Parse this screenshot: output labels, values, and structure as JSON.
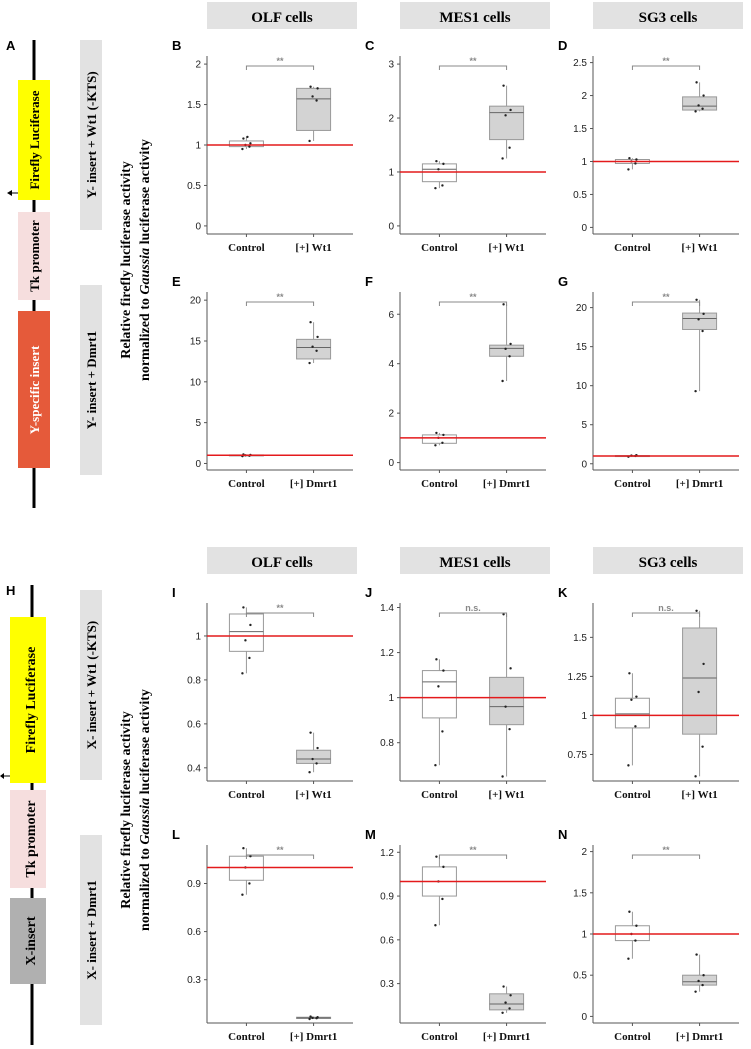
{
  "colors": {
    "yellow": "#ffff00",
    "pink": "#f6dede",
    "orange": "#e55a3a",
    "gray": "#b0b0b0",
    "header": "#e2e2e2",
    "redline": "#e41a1c",
    "box_control": "#ffffff",
    "box_treated": "#d3d3d3"
  },
  "headers": [
    "OLF cells",
    "MES1 cells",
    "SG3 cells"
  ],
  "top": {
    "panel_label": "A",
    "construct": [
      "Firefly Luciferase",
      "Tk promoter",
      "Y-specific insert"
    ],
    "row_labels": [
      "Y- insert + Wt1 (-KTS)",
      "Y- insert + Dmrt1"
    ]
  },
  "bottom": {
    "panel_label": "H",
    "construct": [
      "Firefly Luciferase",
      "Tk promoter",
      "X-insert"
    ],
    "row_labels": [
      "X- insert + Wt1 (-KTS)",
      "X- insert + Dmrt1"
    ]
  },
  "ylabel": {
    "line1": "Relative firefly luciferase activity",
    "line2_pre": "normalized to ",
    "line2_italic": "Gaussia",
    "line2_post": " luciferase activity"
  },
  "chart_data": [
    {
      "type": "box",
      "panel": "B",
      "xlabels": [
        "Control",
        "[+] Wt1"
      ],
      "ylim": [
        -0.1,
        2.1
      ],
      "yticks": [
        "0",
        "0.5",
        "1",
        "1.5",
        "2"
      ],
      "sig": "**",
      "boxes": [
        {
          "q1": 0.98,
          "median": 1.0,
          "q3": 1.05,
          "lo": 0.95,
          "hi": 1.1,
          "points": [
            0.95,
            0.98,
            1.0,
            1.02,
            1.08,
            1.1
          ]
        },
        {
          "q1": 1.18,
          "median": 1.57,
          "q3": 1.7,
          "lo": 1.05,
          "hi": 1.72,
          "points": [
            1.05,
            1.55,
            1.6,
            1.7,
            1.72
          ]
        }
      ]
    },
    {
      "type": "box",
      "panel": "C",
      "xlabels": [
        "Control",
        "[+] Wt1"
      ],
      "ylim": [
        -0.15,
        3.15
      ],
      "yticks": [
        "0",
        "1",
        "2",
        "3"
      ],
      "sig": "**",
      "boxes": [
        {
          "q1": 0.82,
          "median": 1.05,
          "q3": 1.15,
          "lo": 0.7,
          "hi": 1.2,
          "points": [
            0.7,
            0.75,
            1.05,
            1.15,
            1.2
          ]
        },
        {
          "q1": 1.6,
          "median": 2.1,
          "q3": 2.22,
          "lo": 1.25,
          "hi": 2.6,
          "points": [
            1.25,
            1.45,
            2.05,
            2.15,
            2.6
          ]
        }
      ]
    },
    {
      "type": "box",
      "panel": "D",
      "xlabels": [
        "Control",
        "[+] Wt1"
      ],
      "ylim": [
        -0.1,
        2.6
      ],
      "yticks": [
        "0",
        "0.5",
        "1",
        "1.5",
        "2",
        "2.5"
      ],
      "sig": "**",
      "boxes": [
        {
          "q1": 0.97,
          "median": 1.0,
          "q3": 1.03,
          "lo": 0.88,
          "hi": 1.05,
          "points": [
            0.88,
            0.97,
            1.0,
            1.03,
            1.05
          ]
        },
        {
          "q1": 1.78,
          "median": 1.84,
          "q3": 1.98,
          "lo": 1.76,
          "hi": 2.2,
          "points": [
            1.76,
            1.8,
            1.85,
            2.0,
            2.2
          ]
        }
      ]
    },
    {
      "type": "box",
      "panel": "E",
      "xlabels": [
        "Control",
        "[+] Dmrt1"
      ],
      "ylim": [
        -0.8,
        21
      ],
      "yticks": [
        "0",
        "5",
        "10",
        "15",
        "20"
      ],
      "sig": "**",
      "boxes": [
        {
          "q1": 0.95,
          "median": 1.0,
          "q3": 1.05,
          "lo": 0.9,
          "hi": 1.1,
          "points": [
            0.9,
            0.95,
            1.0,
            1.05,
            1.1
          ]
        },
        {
          "q1": 12.8,
          "median": 14.2,
          "q3": 15.2,
          "lo": 12.3,
          "hi": 17.3,
          "points": [
            12.3,
            13.8,
            14.3,
            15.5,
            17.3
          ]
        }
      ]
    },
    {
      "type": "box",
      "panel": "F",
      "xlabels": [
        "Control",
        "[+] Dmrt1"
      ],
      "ylim": [
        -0.3,
        6.9
      ],
      "yticks": [
        "0",
        "2",
        "4",
        "6"
      ],
      "sig": "**",
      "boxes": [
        {
          "q1": 0.78,
          "median": 1.0,
          "q3": 1.12,
          "lo": 0.7,
          "hi": 1.2,
          "points": [
            0.7,
            0.8,
            1.0,
            1.12,
            1.2
          ]
        },
        {
          "q1": 4.3,
          "median": 4.62,
          "q3": 4.75,
          "lo": 3.3,
          "hi": 6.4,
          "points": [
            3.3,
            4.3,
            4.6,
            4.8,
            6.4
          ]
        }
      ]
    },
    {
      "type": "box",
      "panel": "G",
      "xlabels": [
        "Control",
        "[+] Dmrt1"
      ],
      "ylim": [
        -0.8,
        22
      ],
      "yticks": [
        "0",
        "5",
        "10",
        "15",
        "20"
      ],
      "sig": "**",
      "boxes": [
        {
          "q1": 0.95,
          "median": 1.0,
          "q3": 1.05,
          "lo": 0.9,
          "hi": 1.1,
          "points": [
            0.9,
            1.0,
            1.05,
            1.1
          ]
        },
        {
          "q1": 17.2,
          "median": 18.6,
          "q3": 19.3,
          "lo": 9.3,
          "hi": 21.0,
          "points": [
            9.3,
            17.0,
            18.5,
            19.2,
            21.0
          ]
        }
      ]
    },
    {
      "type": "box",
      "panel": "I",
      "xlabels": [
        "Control",
        "[+] Wt1"
      ],
      "ylim": [
        0.34,
        1.15
      ],
      "yticks": [
        "0.4",
        "0.6",
        "0.8",
        "1"
      ],
      "sig": "**",
      "boxes": [
        {
          "q1": 0.93,
          "median": 1.02,
          "q3": 1.1,
          "lo": 0.83,
          "hi": 1.13,
          "points": [
            0.83,
            0.9,
            0.98,
            1.05,
            1.13
          ]
        },
        {
          "q1": 0.42,
          "median": 0.44,
          "q3": 0.48,
          "lo": 0.38,
          "hi": 0.56,
          "points": [
            0.38,
            0.42,
            0.44,
            0.49,
            0.56
          ]
        }
      ]
    },
    {
      "type": "box",
      "panel": "J",
      "xlabels": [
        "Control",
        "[+] Wt1"
      ],
      "ylim": [
        0.63,
        1.42
      ],
      "yticks": [
        "0.8",
        "1",
        "1.2",
        "1.4"
      ],
      "sig": "n.s.",
      "boxes": [
        {
          "q1": 0.91,
          "median": 1.07,
          "q3": 1.12,
          "lo": 0.7,
          "hi": 1.17,
          "points": [
            0.7,
            0.85,
            1.05,
            1.12,
            1.17
          ]
        },
        {
          "q1": 0.88,
          "median": 0.96,
          "q3": 1.09,
          "lo": 0.65,
          "hi": 1.37,
          "points": [
            0.65,
            0.86,
            0.96,
            1.13,
            1.37
          ]
        }
      ]
    },
    {
      "type": "box",
      "panel": "K",
      "xlabels": [
        "Control",
        "[+] Wt1"
      ],
      "ylim": [
        0.58,
        1.72
      ],
      "yticks": [
        "0.75",
        "1",
        "1.25",
        "1.5"
      ],
      "sig": "n.s.",
      "boxes": [
        {
          "q1": 0.92,
          "median": 1.01,
          "q3": 1.11,
          "lo": 0.68,
          "hi": 1.27,
          "points": [
            0.68,
            0.93,
            1.1,
            1.12,
            1.27
          ]
        },
        {
          "q1": 0.88,
          "median": 1.24,
          "q3": 1.56,
          "lo": 0.61,
          "hi": 1.67,
          "points": [
            0.61,
            0.8,
            1.15,
            1.33,
            1.67
          ]
        }
      ]
    },
    {
      "type": "box",
      "panel": "L",
      "xlabels": [
        "Control",
        "[+] Dmrt1"
      ],
      "ylim": [
        0.03,
        1.14
      ],
      "yticks": [
        "0.3",
        "0.6",
        "0.9"
      ],
      "sig": "**",
      "boxes": [
        {
          "q1": 0.92,
          "median": 1.0,
          "q3": 1.07,
          "lo": 0.83,
          "hi": 1.12,
          "points": [
            0.83,
            0.9,
            1.0,
            1.07,
            1.12
          ]
        },
        {
          "q1": 0.058,
          "median": 0.062,
          "q3": 0.066,
          "lo": 0.055,
          "hi": 0.07,
          "points": [
            0.055,
            0.06,
            0.062,
            0.066,
            0.07
          ]
        }
      ]
    },
    {
      "type": "box",
      "panel": "M",
      "xlabels": [
        "Control",
        "[+] Dmrt1"
      ],
      "ylim": [
        0.03,
        1.25
      ],
      "yticks": [
        "0.3",
        "0.6",
        "0.9",
        "1.2"
      ],
      "sig": "**",
      "boxes": [
        {
          "q1": 0.9,
          "median": 1.0,
          "q3": 1.1,
          "lo": 0.7,
          "hi": 1.17,
          "points": [
            0.7,
            0.88,
            1.0,
            1.1,
            1.17
          ]
        },
        {
          "q1": 0.12,
          "median": 0.16,
          "q3": 0.23,
          "lo": 0.1,
          "hi": 0.28,
          "points": [
            0.1,
            0.13,
            0.17,
            0.22,
            0.28
          ]
        }
      ]
    },
    {
      "type": "box",
      "panel": "N",
      "xlabels": [
        "Control",
        "[+] Dmrt1"
      ],
      "ylim": [
        -0.08,
        2.08
      ],
      "yticks": [
        "0",
        "0.5",
        "1",
        "1.5",
        "2"
      ],
      "sig": "**",
      "boxes": [
        {
          "q1": 0.92,
          "median": 1.0,
          "q3": 1.1,
          "lo": 0.7,
          "hi": 1.27,
          "points": [
            0.7,
            0.92,
            1.0,
            1.1,
            1.27
          ]
        },
        {
          "q1": 0.38,
          "median": 0.42,
          "q3": 0.5,
          "lo": 0.3,
          "hi": 0.75,
          "points": [
            0.3,
            0.38,
            0.43,
            0.5,
            0.75
          ]
        }
      ]
    }
  ]
}
